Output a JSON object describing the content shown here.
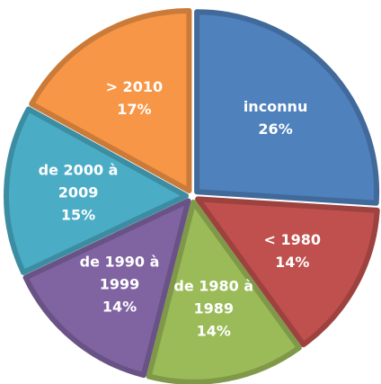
{
  "chart_data": {
    "type": "pie",
    "categories": [
      "inconnu",
      "< 1980",
      "de 1980 à 1989",
      "de 1990 à 1999",
      "de 2000 à 2009",
      "> 2010"
    ],
    "values": [
      26,
      14,
      14,
      14,
      15,
      17
    ],
    "value_labels": [
      "26%",
      "14%",
      "14%",
      "14%",
      "15%",
      "17%"
    ],
    "colors": [
      "#4f81bd",
      "#c0504d",
      "#9bbb59",
      "#8064a2",
      "#4bacc6",
      "#f79646"
    ]
  }
}
